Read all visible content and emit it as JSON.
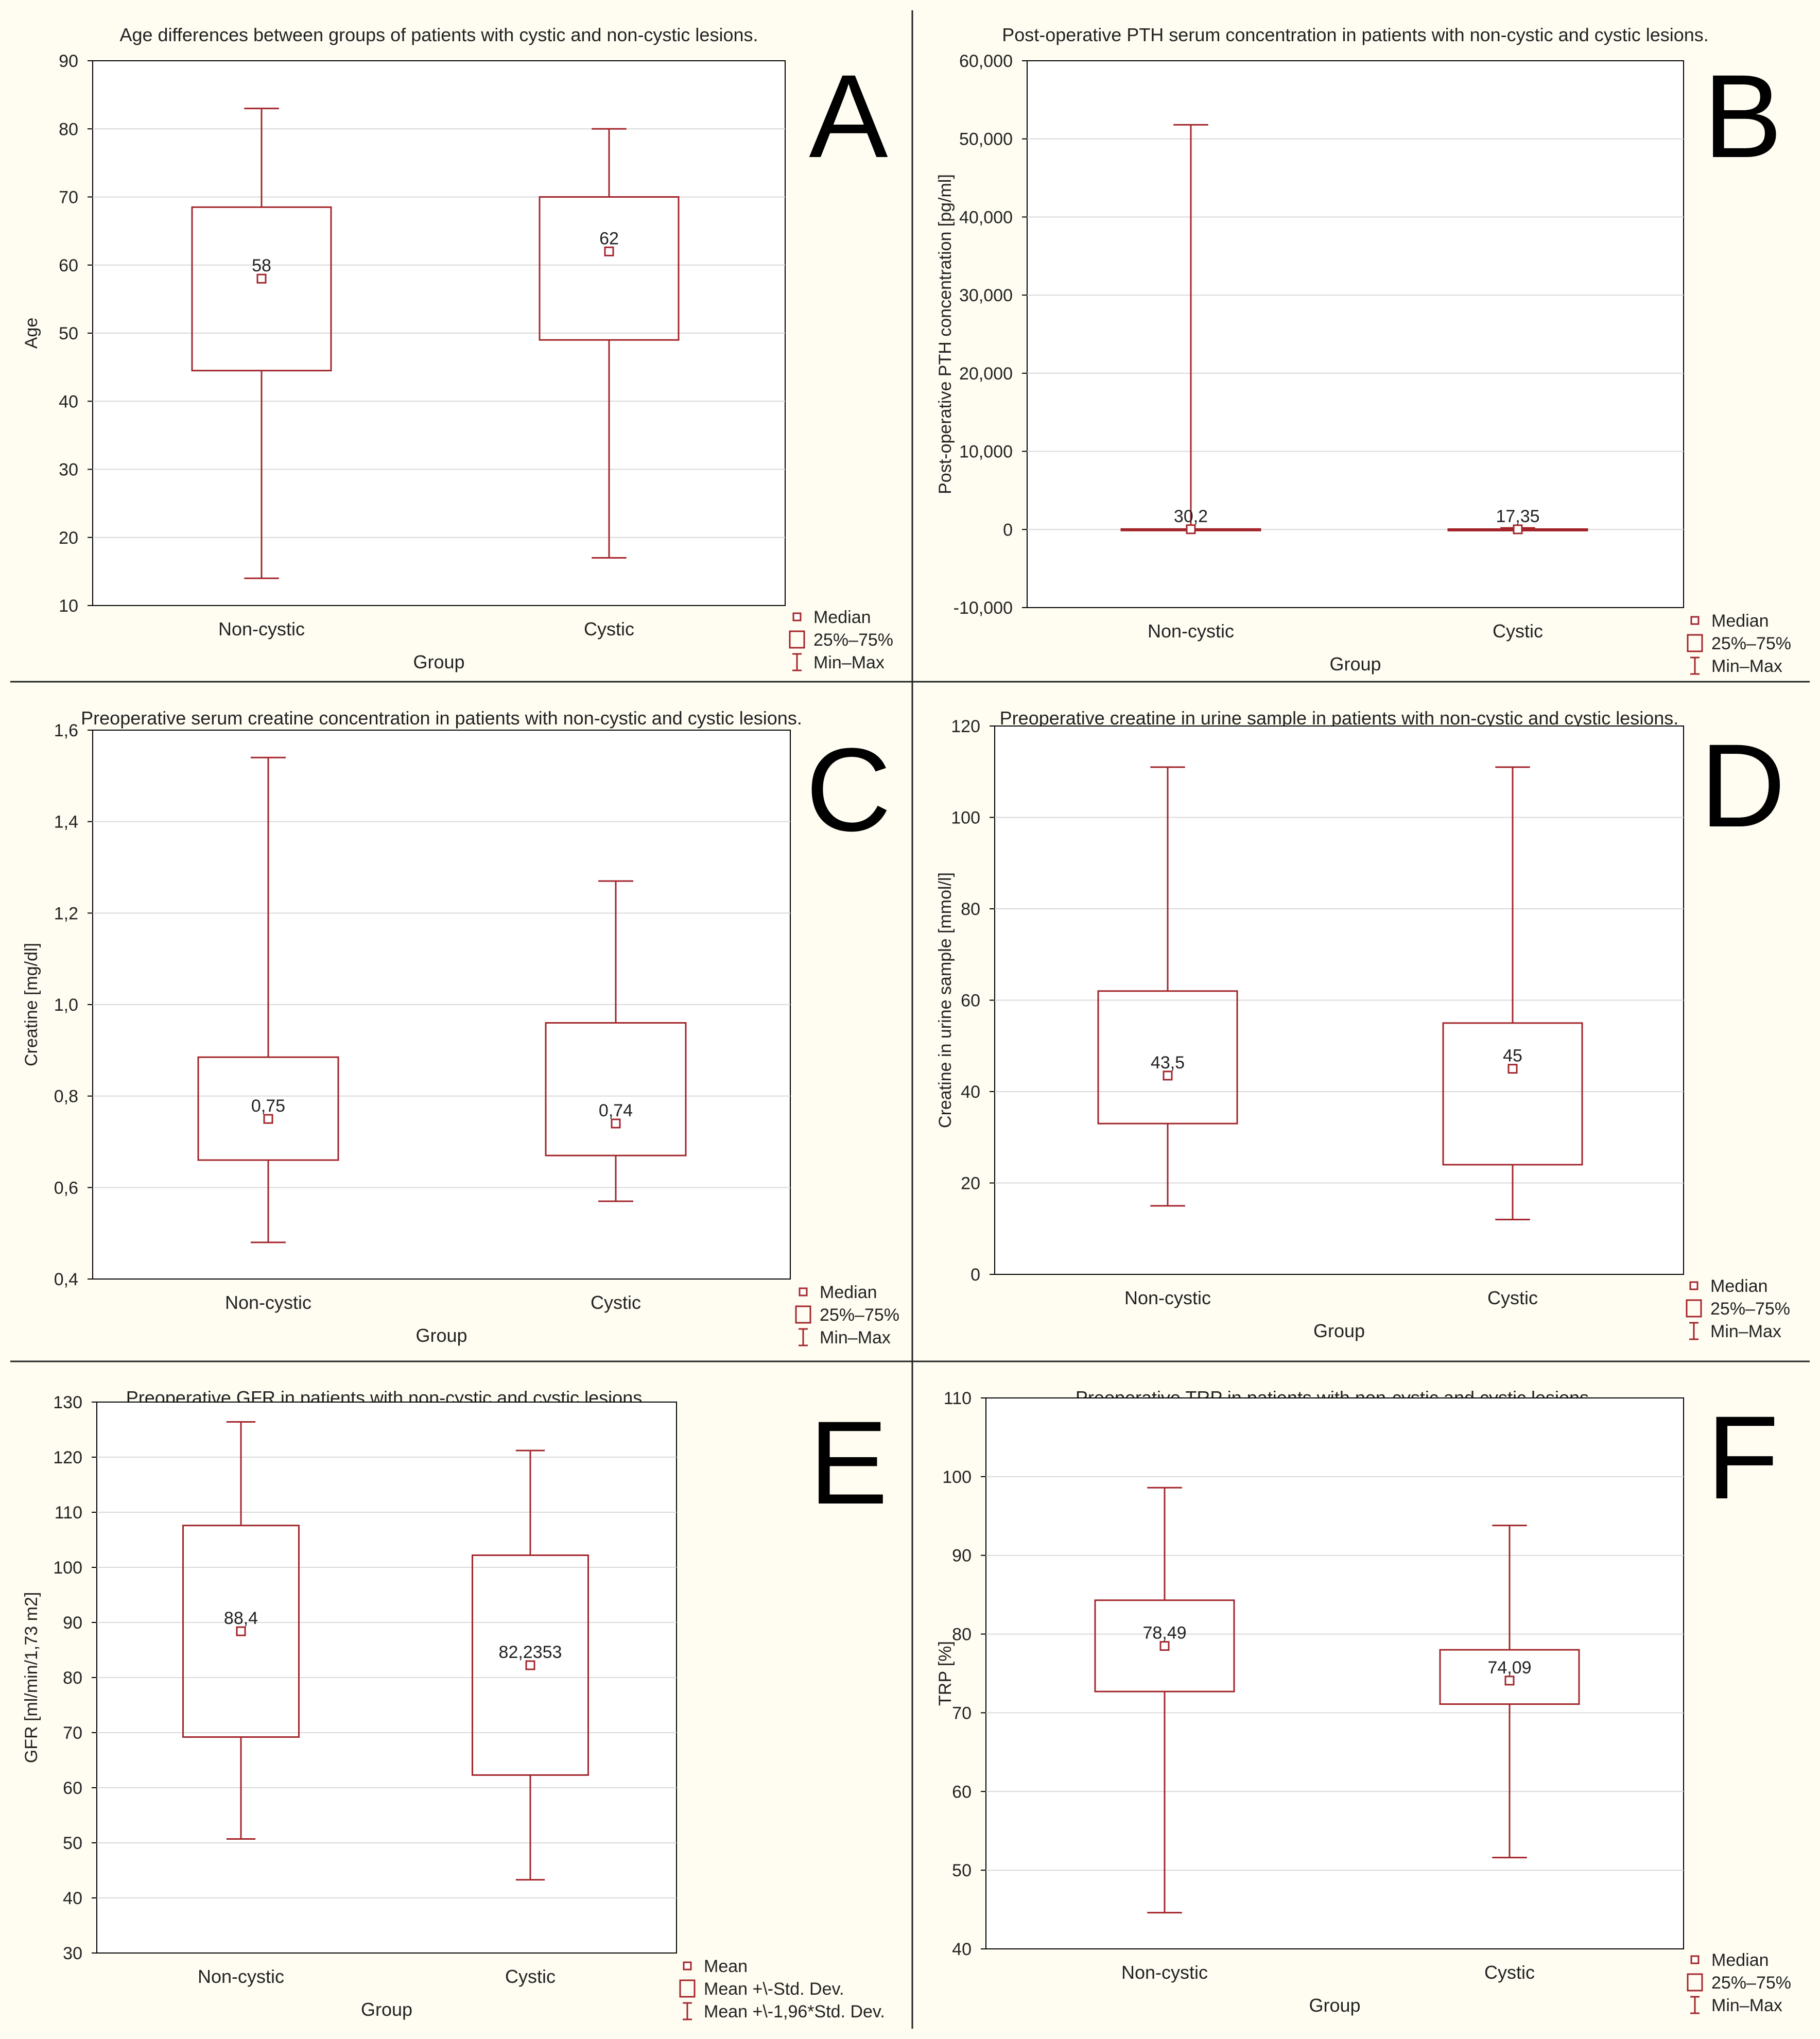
{
  "colors": {
    "panel_bg": "#fffdf2",
    "plot_bg": "#ffffff",
    "box": "#a3252b",
    "frame": "#000000",
    "grid": "#d9d9d9",
    "text": "#222222"
  },
  "chart_data": [
    {
      "panel": "A",
      "type": "boxplot",
      "title": "Age differences between groups of patients with cystic and non-cystic lesions.",
      "xlabel": "Group",
      "ylabel": "Age",
      "ylim": [
        10,
        90
      ],
      "yticks": [
        "10",
        "20",
        "30",
        "40",
        "50",
        "60",
        "70",
        "80",
        "90"
      ],
      "categories": [
        "Non-cystic",
        "Cystic"
      ],
      "boxes": [
        {
          "group": "Non-cystic",
          "center": 58,
          "center_label": "58",
          "q1": 44.5,
          "q3": 68.5,
          "min": 14,
          "max": 83
        },
        {
          "group": "Cystic",
          "center": 62,
          "center_label": "62",
          "q1": 49,
          "q3": 70,
          "min": 17,
          "max": 80
        }
      ],
      "legend": [
        "Median",
        "25%–75%",
        "Min–Max"
      ]
    },
    {
      "panel": "B",
      "type": "boxplot",
      "title": "Post-operative PTH serum  concentration in patients with non-cystic and cystic lesions.",
      "xlabel": "Group",
      "ylabel": "Post-operative PTH concentration [pg/ml]",
      "ylim": [
        -10000,
        60000
      ],
      "yticks": [
        "-10,000",
        "0",
        "10,000",
        "20,000",
        "30,000",
        "40,000",
        "50,000",
        "60,000"
      ],
      "categories": [
        "Non-cystic",
        "Cystic"
      ],
      "boxes": [
        {
          "group": "Non-cystic",
          "center": 30.2,
          "center_label": "30,2",
          "q1": 10,
          "q3": 60,
          "min": 5,
          "max": 51800
        },
        {
          "group": "Cystic",
          "center": 17.35,
          "center_label": "17,35",
          "q1": 8,
          "q3": 50,
          "min": 3,
          "max": 200
        }
      ],
      "legend": [
        "Median",
        "25%–75%",
        "Min–Max"
      ]
    },
    {
      "panel": "C",
      "type": "boxplot",
      "title": "Preoperative serum creatine concentration in patients with non-cystic and cystic lesions.",
      "xlabel": "Group",
      "ylabel": "Creatine [mg/dl]",
      "ylim": [
        0.4,
        1.6
      ],
      "yticks": [
        "0,4",
        "0,6",
        "0,8",
        "1,0",
        "1,2",
        "1,4",
        "1,6"
      ],
      "categories": [
        "Non-cystic",
        "Cystic"
      ],
      "boxes": [
        {
          "group": "Non-cystic",
          "center": 0.75,
          "center_label": "0,75",
          "q1": 0.66,
          "q3": 0.885,
          "min": 0.48,
          "max": 1.54
        },
        {
          "group": "Cystic",
          "center": 0.74,
          "center_label": "0,74",
          "q1": 0.67,
          "q3": 0.96,
          "min": 0.57,
          "max": 1.27
        }
      ],
      "legend": [
        "Median",
        "25%–75%",
        "Min–Max"
      ]
    },
    {
      "panel": "D",
      "type": "boxplot",
      "title": "Preoperative creatine in urine sample in patients with non-cystic and cystic lesions.",
      "xlabel": "Group",
      "ylabel": "Creatine in urine sample [mmol/l]",
      "ylim": [
        0,
        120
      ],
      "yticks": [
        "0",
        "20",
        "40",
        "60",
        "80",
        "100",
        "120"
      ],
      "categories": [
        "Non-cystic",
        "Cystic"
      ],
      "boxes": [
        {
          "group": "Non-cystic",
          "center": 43.5,
          "center_label": "43,5",
          "q1": 33,
          "q3": 62,
          "min": 15,
          "max": 111
        },
        {
          "group": "Cystic",
          "center": 45,
          "center_label": "45",
          "q1": 24,
          "q3": 55,
          "min": 12,
          "max": 111
        }
      ],
      "legend": [
        "Median",
        "25%–75%",
        "Min–Max"
      ]
    },
    {
      "panel": "E",
      "type": "boxplot",
      "title": "Preoperative GFR in patients with non-cystic and cystic lesions.",
      "xlabel": "Group",
      "ylabel": "GFR [ml/min/1,73 m2]",
      "ylim": [
        30,
        130
      ],
      "yticks": [
        "30",
        "40",
        "50",
        "60",
        "70",
        "80",
        "90",
        "100",
        "110",
        "120",
        "130"
      ],
      "categories": [
        "Non-cystic",
        "Cystic"
      ],
      "boxes": [
        {
          "group": "Non-cystic",
          "center": 88.4,
          "center_label": "88,4",
          "q1": 69.2,
          "q3": 107.6,
          "min": 50.7,
          "max": 126.4
        },
        {
          "group": "Cystic",
          "center": 82.2353,
          "center_label": "82,2353",
          "q1": 62.3,
          "q3": 102.2,
          "min": 43.3,
          "max": 121.2
        }
      ],
      "legend": [
        "Mean",
        "Mean +\\-Std. Dev.",
        "Mean +\\-1,96*Std. Dev."
      ]
    },
    {
      "panel": "F",
      "type": "boxplot",
      "title": "Preoperative TRP in patients with non-cystic and cystic lesions.",
      "xlabel": "Group",
      "ylabel": "TRP [%]",
      "ylim": [
        40,
        110
      ],
      "yticks": [
        "40",
        "50",
        "60",
        "70",
        "80",
        "90",
        "100",
        "110"
      ],
      "categories": [
        "Non-cystic",
        "Cystic"
      ],
      "boxes": [
        {
          "group": "Non-cystic",
          "center": 78.49,
          "center_label": "78,49",
          "q1": 72.7,
          "q3": 84.3,
          "min": 44.6,
          "max": 98.6
        },
        {
          "group": "Cystic",
          "center": 74.09,
          "center_label": "74,09",
          "q1": 71.1,
          "q3": 78.0,
          "min": 51.6,
          "max": 93.8
        }
      ],
      "legend": [
        "Median",
        "25%–75%",
        "Min–Max"
      ]
    }
  ]
}
